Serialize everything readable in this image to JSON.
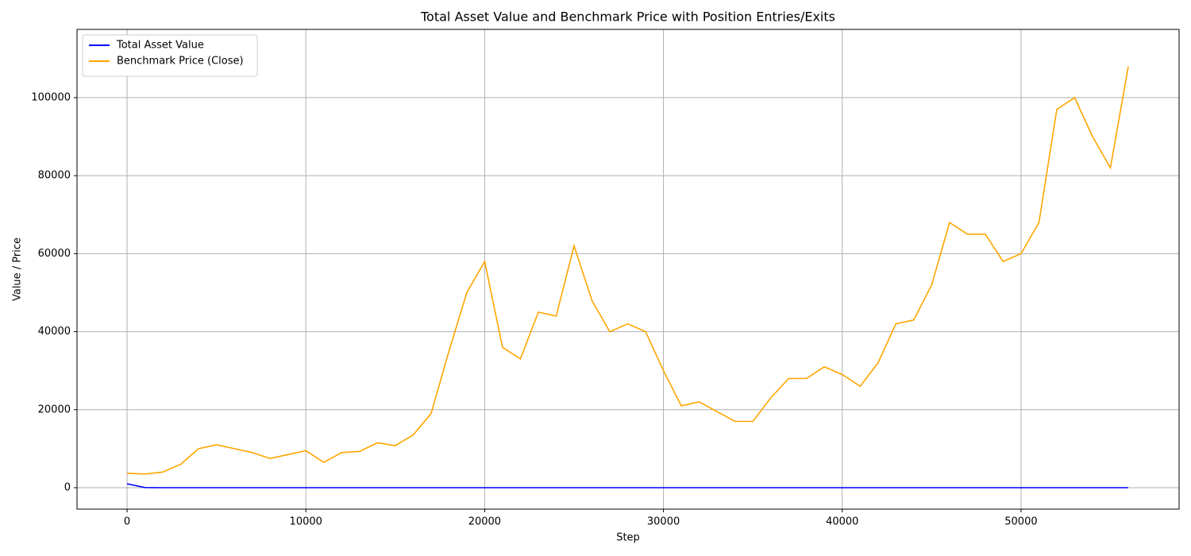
{
  "chart_data": {
    "type": "line",
    "title": "Total Asset Value and Benchmark Price with Position Entries/Exits",
    "xlabel": "Step",
    "ylabel": "Value / Price",
    "x": [
      0,
      1000,
      2000,
      3000,
      4000,
      5000,
      6000,
      7000,
      8000,
      9000,
      10000,
      11000,
      12000,
      13000,
      14000,
      15000,
      16000,
      17000,
      18000,
      19000,
      20000,
      21000,
      22000,
      23000,
      24000,
      25000,
      26000,
      27000,
      28000,
      29000,
      30000,
      31000,
      32000,
      33000,
      34000,
      35000,
      36000,
      37000,
      38000,
      39000,
      40000,
      41000,
      42000,
      43000,
      44000,
      45000,
      46000,
      47000,
      48000,
      49000,
      50000,
      51000,
      52000,
      53000,
      54000,
      55000,
      56000
    ],
    "series": [
      {
        "name": "Total Asset Value",
        "color": "#0000ff",
        "values": [
          1000,
          30,
          0,
          0,
          0,
          0,
          0,
          0,
          0,
          0,
          0,
          0,
          0,
          0,
          0,
          0,
          0,
          0,
          0,
          0,
          0,
          0,
          0,
          0,
          0,
          0,
          0,
          0,
          0,
          0,
          0,
          0,
          0,
          0,
          0,
          0,
          0,
          0,
          0,
          0,
          0,
          0,
          0,
          0,
          0,
          0,
          0,
          0,
          0,
          0,
          0,
          0,
          0,
          0,
          0,
          0,
          0
        ]
      },
      {
        "name": "Benchmark Price (Close)",
        "color": "#ffa500",
        "values": [
          3700,
          3500,
          4000,
          6000,
          10000,
          11000,
          10000,
          9000,
          7500,
          8500,
          9500,
          6500,
          9000,
          9300,
          11500,
          10800,
          13500,
          19000,
          35000,
          50000,
          58000,
          36000,
          33000,
          45000,
          44000,
          62000,
          48000,
          40000,
          42000,
          40000,
          30000,
          21000,
          22000,
          19500,
          17000,
          17000,
          23000,
          28000,
          28000,
          31000,
          29000,
          26000,
          32000,
          42000,
          43000,
          52000,
          68000,
          65000,
          65000,
          58000,
          60000,
          68000,
          97000,
          100000,
          90000,
          82000,
          108000
        ]
      }
    ],
    "xlim": [
      -2800,
      58840
    ],
    "ylim": [
      -5500,
      117500
    ],
    "xticks": [
      0,
      10000,
      20000,
      30000,
      40000,
      50000
    ],
    "yticks": [
      0,
      20000,
      40000,
      60000,
      80000,
      100000
    ],
    "grid": true,
    "legend": "upper left"
  }
}
